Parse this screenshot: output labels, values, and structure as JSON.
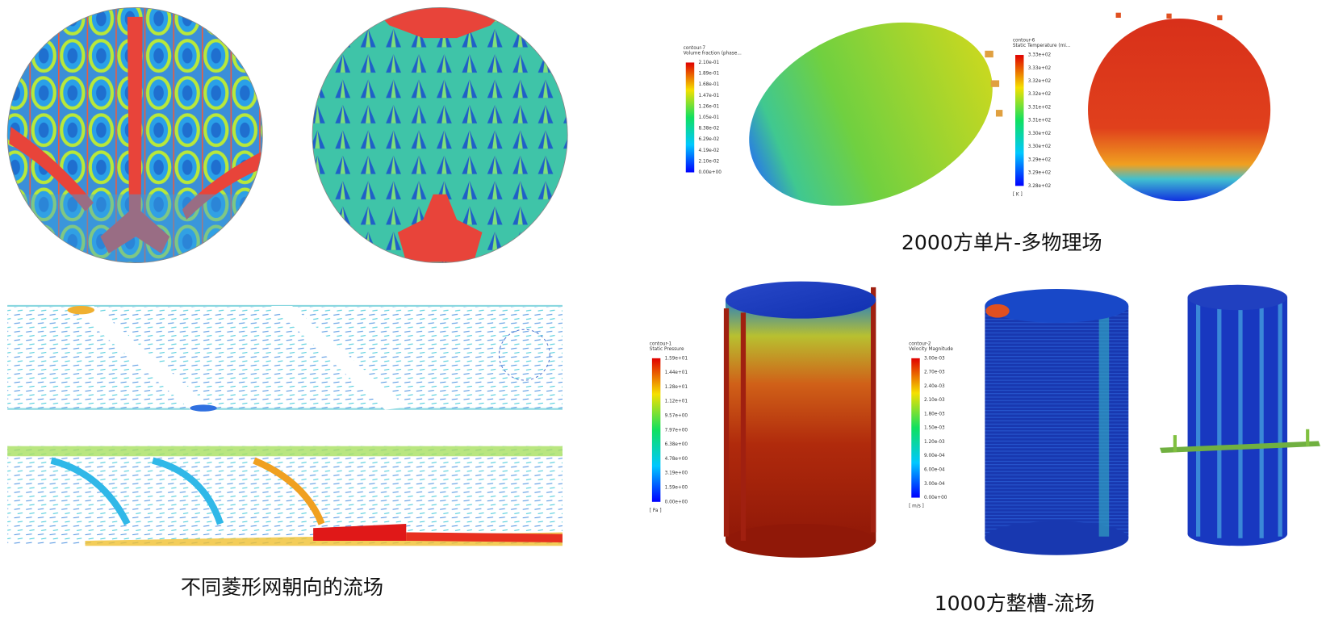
{
  "captions": {
    "multiphysics": "2000方单片-多物理场",
    "mesh_flow": "不同菱形网朝向的流场",
    "tank_flow": "1000方整槽-流场"
  },
  "legends": [
    {
      "name": "contour-7",
      "quantity": "Volume fraction (phase...",
      "ticks": [
        "2.10e-01",
        "1.89e-01",
        "1.68e-01",
        "1.47e-01",
        "1.26e-01",
        "1.05e-01",
        "8.38e-02",
        "6.29e-02",
        "4.19e-02",
        "2.10e-02",
        "0.00e+00"
      ]
    },
    {
      "name": "contour-6",
      "quantity": "Static Temperature (mi...",
      "ticks": [
        "3.33e+02",
        "3.33e+02",
        "3.32e+02",
        "3.32e+02",
        "3.31e+02",
        "3.31e+02",
        "3.30e+02",
        "3.30e+02",
        "3.29e+02",
        "3.29e+02",
        "3.28e+02"
      ],
      "unit": "[ K ]"
    },
    {
      "name": "contour-1",
      "quantity": "Static Pressure",
      "ticks": [
        "1.59e+01",
        "1.44e+01",
        "1.28e+01",
        "1.12e+01",
        "9.57e+00",
        "7.97e+00",
        "6.38e+00",
        "4.78e+00",
        "3.19e+00",
        "1.59e+00",
        "0.00e+00"
      ],
      "unit": "[ Pa ]"
    },
    {
      "name": "contour-2",
      "quantity": "Velocity Magnitude",
      "ticks": [
        "3.00e-03",
        "2.70e-03",
        "2.40e-03",
        "2.10e-03",
        "1.80e-03",
        "1.50e-03",
        "1.20e-03",
        "9.00e-04",
        "6.00e-04",
        "3.00e-04",
        "0.00e+00"
      ],
      "unit": "[ m/s ]"
    }
  ]
}
